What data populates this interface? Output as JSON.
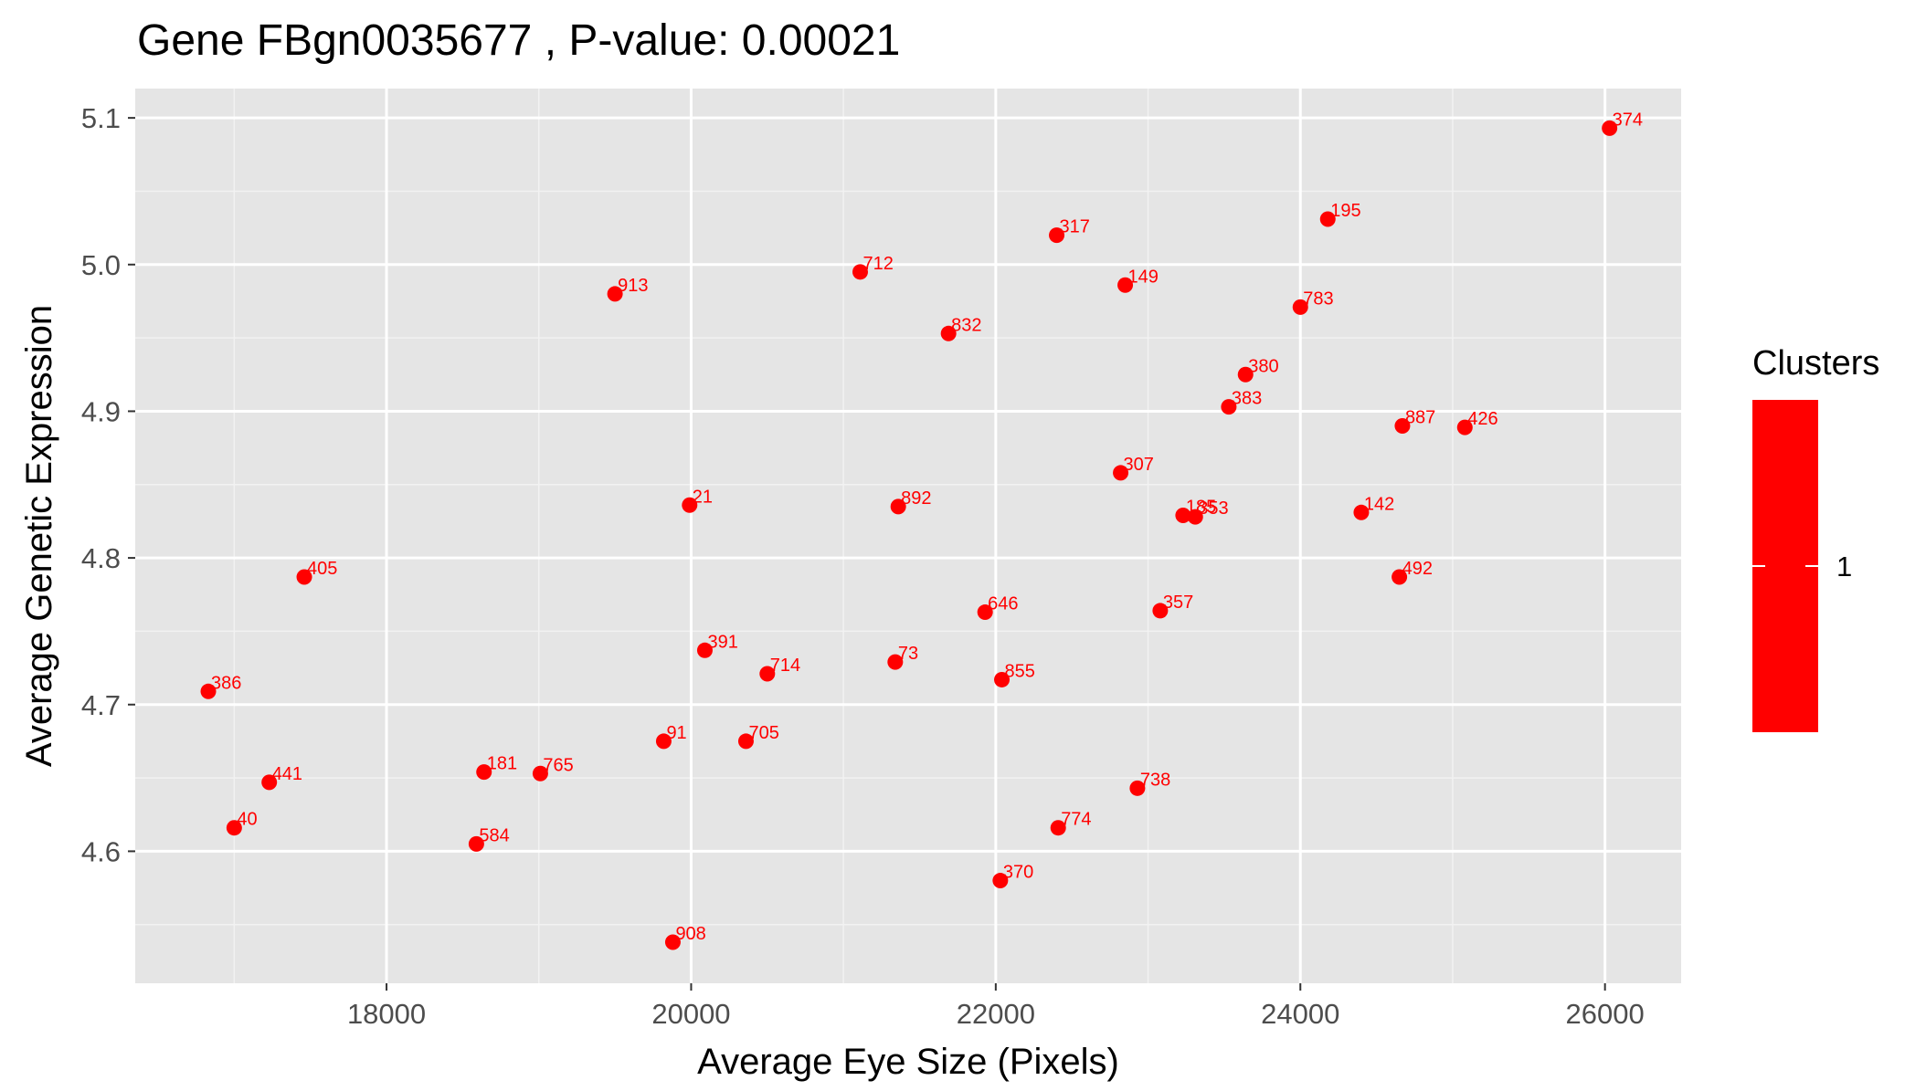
{
  "chart_data": {
    "type": "scatter",
    "title": "Gene FBgn0035677 , P-value: 0.00021",
    "xlabel": "Average Eye Size (Pixels)",
    "ylabel": "Average Genetic Expression",
    "xlim": [
      16350,
      26500
    ],
    "ylim": [
      4.51,
      5.12
    ],
    "xticks": [
      18000,
      20000,
      22000,
      24000,
      26000
    ],
    "xtick_labels": [
      "18000",
      "20000",
      "22000",
      "24000",
      "26000"
    ],
    "yticks": [
      4.6,
      4.7,
      4.8,
      4.9,
      5.0,
      5.1
    ],
    "ytick_labels": [
      "4.6",
      "4.7",
      "4.8",
      "4.9",
      "5.0",
      "5.1"
    ],
    "grid": true,
    "background": "#e5e5e5",
    "point_color": "#ff0000",
    "legend": {
      "title": "Clusters",
      "position": "right",
      "entries": [
        {
          "label": "1",
          "color": "#ff0000"
        }
      ]
    },
    "points": [
      {
        "label": "374",
        "x": 26030,
        "y": 5.093
      },
      {
        "label": "195",
        "x": 24180,
        "y": 5.031
      },
      {
        "label": "317",
        "x": 22400,
        "y": 5.02
      },
      {
        "label": "712",
        "x": 21110,
        "y": 4.995
      },
      {
        "label": "149",
        "x": 22850,
        "y": 4.986
      },
      {
        "label": "913",
        "x": 19500,
        "y": 4.98
      },
      {
        "label": "783",
        "x": 24000,
        "y": 4.971
      },
      {
        "label": "832",
        "x": 21690,
        "y": 4.953
      },
      {
        "label": "380",
        "x": 23640,
        "y": 4.925
      },
      {
        "label": "383",
        "x": 23530,
        "y": 4.903
      },
      {
        "label": "887",
        "x": 24670,
        "y": 4.89
      },
      {
        "label": "426",
        "x": 25080,
        "y": 4.889
      },
      {
        "label": "307",
        "x": 22820,
        "y": 4.858
      },
      {
        "label": "21",
        "x": 19990,
        "y": 4.836
      },
      {
        "label": "892",
        "x": 21360,
        "y": 4.835
      },
      {
        "label": "142",
        "x": 24400,
        "y": 4.831
      },
      {
        "label": "185",
        "x": 23230,
        "y": 4.829
      },
      {
        "label": "353",
        "x": 23310,
        "y": 4.828
      },
      {
        "label": "405",
        "x": 17460,
        "y": 4.787
      },
      {
        "label": "492",
        "x": 24650,
        "y": 4.787
      },
      {
        "label": "357",
        "x": 23080,
        "y": 4.764
      },
      {
        "label": "646",
        "x": 21930,
        "y": 4.763
      },
      {
        "label": "391",
        "x": 20090,
        "y": 4.737
      },
      {
        "label": "73",
        "x": 21340,
        "y": 4.729
      },
      {
        "label": "714",
        "x": 20500,
        "y": 4.721
      },
      {
        "label": "855",
        "x": 22040,
        "y": 4.717
      },
      {
        "label": "386",
        "x": 16830,
        "y": 4.709
      },
      {
        "label": "91",
        "x": 19820,
        "y": 4.675
      },
      {
        "label": "705",
        "x": 20360,
        "y": 4.675
      },
      {
        "label": "181",
        "x": 18640,
        "y": 4.654
      },
      {
        "label": "765",
        "x": 19010,
        "y": 4.653
      },
      {
        "label": "441",
        "x": 17230,
        "y": 4.647
      },
      {
        "label": "738",
        "x": 22930,
        "y": 4.643
      },
      {
        "label": "40",
        "x": 17000,
        "y": 4.616
      },
      {
        "label": "774",
        "x": 22410,
        "y": 4.616
      },
      {
        "label": "584",
        "x": 18590,
        "y": 4.605
      },
      {
        "label": "370",
        "x": 22030,
        "y": 4.58
      },
      {
        "label": "908",
        "x": 19880,
        "y": 4.538
      }
    ]
  }
}
